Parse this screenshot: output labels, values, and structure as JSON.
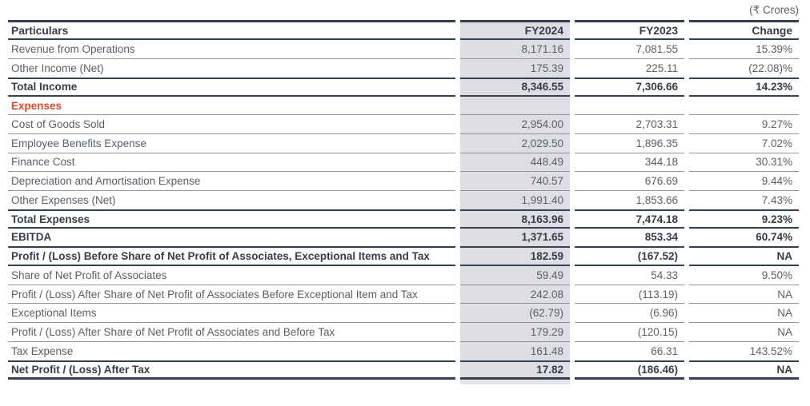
{
  "unit_label": "(₹ Crores)",
  "colors": {
    "navy": "#334150",
    "thinline": "#8F9298",
    "colbg": "#DCDEE3",
    "coltail": "#E3E4E9",
    "red": "#E0482F",
    "tgray": "#595F66",
    "tdark": "#353D47",
    "pagebg": "#FFFFFF"
  },
  "table": {
    "columns": [
      "Particulars",
      "FY2024",
      "FY2023",
      "Change"
    ],
    "rows": [
      {
        "label": "Revenue from Operations",
        "fy2024": "8,171.16",
        "fy2023": "7,081.55",
        "change": "15.39%",
        "emphasis": "none"
      },
      {
        "label": "Other Income (Net)",
        "fy2024": "175.39",
        "fy2023": "225.11",
        "change": "(22.08)%",
        "emphasis": "none"
      },
      {
        "label": "Total Income",
        "fy2024": "8,346.55",
        "fy2023": "7,306.66",
        "change": "14.23%",
        "emphasis": "bold"
      },
      {
        "label": "Expenses",
        "fy2024": "",
        "fy2023": "",
        "change": "",
        "emphasis": "section"
      },
      {
        "label": "Cost of Goods Sold",
        "fy2024": "2,954.00",
        "fy2023": "2,703.31",
        "change": "9.27%",
        "emphasis": "none"
      },
      {
        "label": "Employee Benefits Expense",
        "fy2024": "2,029.50",
        "fy2023": "1,896.35",
        "change": "7.02%",
        "emphasis": "none"
      },
      {
        "label": "Finance Cost",
        "fy2024": "448.49",
        "fy2023": "344.18",
        "change": "30.31%",
        "emphasis": "none"
      },
      {
        "label": "Depreciation and Amortisation Expense",
        "fy2024": "740.57",
        "fy2023": "676.69",
        "change": "9.44%",
        "emphasis": "none"
      },
      {
        "label": "Other Expenses (Net)",
        "fy2024": "1,991.40",
        "fy2023": "1,853.66",
        "change": "7.43%",
        "emphasis": "none"
      },
      {
        "label": "Total Expenses",
        "fy2024": "8,163.96",
        "fy2023": "7,474.18",
        "change": "9.23%",
        "emphasis": "bold"
      },
      {
        "label": "EBITDA",
        "fy2024": "1,371.65",
        "fy2023": "853.34",
        "change": "60.74%",
        "emphasis": "bold"
      },
      {
        "label": "Profit / (Loss) Before Share of Net Profit of Associates, Exceptional Items and Tax",
        "fy2024": "182.59",
        "fy2023": "(167.52)",
        "change": "NA",
        "emphasis": "bold"
      },
      {
        "label": "Share of Net Profit of Associates",
        "fy2024": "59.49",
        "fy2023": "54.33",
        "change": "9.50%",
        "emphasis": "none"
      },
      {
        "label": "Profit / (Loss) After Share of Net Profit of Associates Before Exceptional Item and Tax",
        "fy2024": "242.08",
        "fy2023": "(113.19)",
        "change": "NA",
        "emphasis": "none"
      },
      {
        "label": "Exceptional Items",
        "fy2024": "(62.79)",
        "fy2023": "(6.96)",
        "change": "NA",
        "emphasis": "none"
      },
      {
        "label": "Profit / (Loss) After Share of Net Profit of Associates and Before Tax",
        "fy2024": "179.29",
        "fy2023": "(120.15)",
        "change": "NA",
        "emphasis": "none"
      },
      {
        "label": "Tax Expense",
        "fy2024": "161.48",
        "fy2023": "66.31",
        "change": "143.52%",
        "emphasis": "none"
      },
      {
        "label": "Net Profit / (Loss) After Tax",
        "fy2024": "17.82",
        "fy2023": "(186.46)",
        "change": "NA",
        "emphasis": "bold"
      }
    ]
  }
}
